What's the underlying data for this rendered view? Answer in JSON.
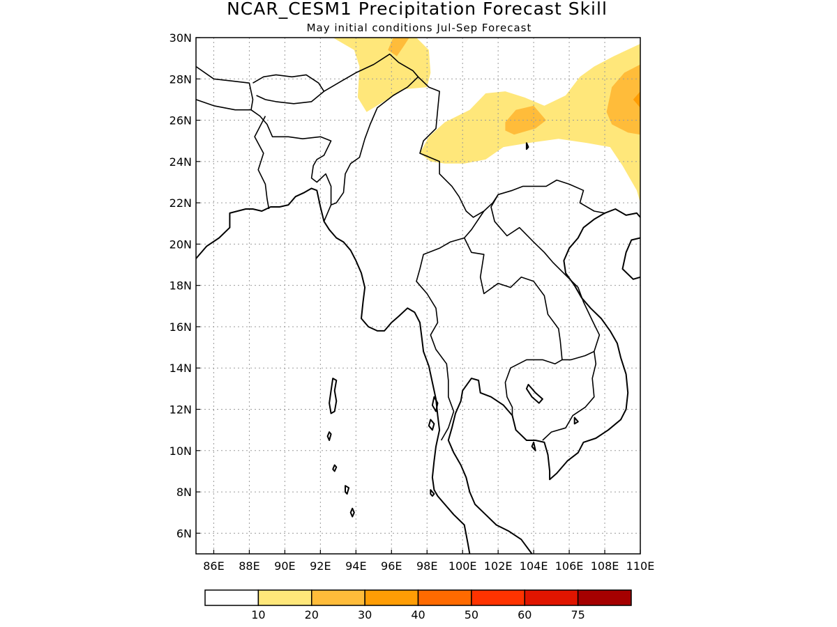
{
  "title": "NCAR_CESM1 Precipitation Forecast Skill",
  "subtitle": "May initial conditions  Jul-Sep Forecast",
  "map": {
    "lon_range": [
      85,
      110
    ],
    "lat_range": [
      5,
      30
    ],
    "lon_ticks": [
      86,
      88,
      90,
      92,
      94,
      96,
      98,
      100,
      102,
      104,
      106,
      108,
      110
    ],
    "lat_ticks": [
      6,
      8,
      10,
      12,
      14,
      16,
      18,
      20,
      22,
      24,
      26,
      28,
      30
    ],
    "lon_tick_labels": [
      "86E",
      "88E",
      "90E",
      "92E",
      "94E",
      "96E",
      "98E",
      "100E",
      "102E",
      "104E",
      "106E",
      "108E",
      "110E"
    ],
    "lat_tick_labels": [
      "6N",
      "8N",
      "10N",
      "12N",
      "14N",
      "16N",
      "18N",
      "20N",
      "22N",
      "24N",
      "26N",
      "28N",
      "30N"
    ],
    "grid": true
  },
  "colorbar": {
    "colors": [
      "#ffffff",
      "#ffe77a",
      "#ffbc3a",
      "#ff9d05",
      "#ff6a00",
      "#ff3300",
      "#e01500",
      "#a50000"
    ],
    "labels": [
      "10",
      "20",
      "30",
      "40",
      "50",
      "60",
      "75"
    ]
  },
  "skill_contours": [
    {
      "level": "10-20",
      "color": "#ffe77a",
      "polygons": [
        [
          [
            92.7,
            30
          ],
          [
            97.4,
            30
          ],
          [
            98.1,
            29.4
          ],
          [
            98.2,
            28.3
          ],
          [
            98.0,
            27.6
          ],
          [
            96.7,
            27.5
          ],
          [
            94.6,
            26.4
          ],
          [
            94.1,
            27.1
          ],
          [
            94.2,
            28.6
          ],
          [
            93.9,
            29.4
          ]
        ],
        [
          [
            97.6,
            24.4
          ],
          [
            98.1,
            25.2
          ],
          [
            99.0,
            25.9
          ],
          [
            100.4,
            26.5
          ],
          [
            101.3,
            27.3
          ],
          [
            102.4,
            27.4
          ],
          [
            103.5,
            27.1
          ],
          [
            104.6,
            26.7
          ],
          [
            105.8,
            27.2
          ],
          [
            106.6,
            28.1
          ],
          [
            107.4,
            28.6
          ],
          [
            108.5,
            29.1
          ],
          [
            110,
            29.7
          ],
          [
            110,
            22.0
          ],
          [
            109.8,
            22.6
          ],
          [
            109.0,
            23.8
          ],
          [
            108.3,
            24.7
          ],
          [
            107.0,
            24.9
          ],
          [
            105.4,
            25.1
          ],
          [
            103.7,
            24.9
          ],
          [
            102.3,
            24.7
          ],
          [
            101.3,
            24.1
          ],
          [
            100.1,
            23.9
          ],
          [
            99.0,
            23.9
          ],
          [
            98.2,
            24.0
          ]
        ]
      ]
    },
    {
      "level": "20-30",
      "color": "#ffbc3a",
      "polygons": [
        [
          [
            96.1,
            30
          ],
          [
            97.0,
            30
          ],
          [
            96.7,
            29.6
          ],
          [
            96.3,
            29.1
          ],
          [
            95.8,
            29.4
          ]
        ],
        [
          [
            102.4,
            25.9
          ],
          [
            103.0,
            26.5
          ],
          [
            104.0,
            26.7
          ],
          [
            104.7,
            26.0
          ],
          [
            104.1,
            25.6
          ],
          [
            102.9,
            25.3
          ],
          [
            102.4,
            25.5
          ]
        ],
        [
          [
            108.1,
            26.4
          ],
          [
            108.4,
            27.6
          ],
          [
            109.1,
            28.3
          ],
          [
            110,
            28.7
          ],
          [
            110,
            25.3
          ],
          [
            109.3,
            25.4
          ],
          [
            108.4,
            25.8
          ]
        ]
      ]
    },
    {
      "level": "30-40",
      "color": "#ff9d05",
      "polygons": [
        [
          [
            109.6,
            27.0
          ],
          [
            110,
            27.4
          ],
          [
            110,
            26.6
          ]
        ]
      ]
    }
  ],
  "coastlines": [
    [
      [
        85,
        19.3
      ],
      [
        85.6,
        19.9
      ],
      [
        86.3,
        20.3
      ],
      [
        86.9,
        20.8
      ],
      [
        86.9,
        21.5
      ],
      [
        87.8,
        21.7
      ],
      [
        88.2,
        21.7
      ],
      [
        88.7,
        21.6
      ],
      [
        89.2,
        21.8
      ],
      [
        89.7,
        21.8
      ],
      [
        90.2,
        21.9
      ],
      [
        90.6,
        22.3
      ],
      [
        91.1,
        22.5
      ],
      [
        91.5,
        22.7
      ],
      [
        91.8,
        22.6
      ],
      [
        92.0,
        21.8
      ],
      [
        92.2,
        21.1
      ],
      [
        92.5,
        20.7
      ],
      [
        92.9,
        20.3
      ],
      [
        93.3,
        20.1
      ],
      [
        93.7,
        19.7
      ],
      [
        94.0,
        19.2
      ],
      [
        94.3,
        18.6
      ],
      [
        94.5,
        17.9
      ],
      [
        94.4,
        17.2
      ],
      [
        94.3,
        16.4
      ],
      [
        94.7,
        16.0
      ],
      [
        95.2,
        15.8
      ],
      [
        95.6,
        15.8
      ],
      [
        96.0,
        16.2
      ],
      [
        96.4,
        16.5
      ],
      [
        96.9,
        16.9
      ],
      [
        97.3,
        16.7
      ],
      [
        97.6,
        16.2
      ],
      [
        97.7,
        15.5
      ],
      [
        97.8,
        14.8
      ],
      [
        98.1,
        14.1
      ],
      [
        98.3,
        13.3
      ],
      [
        98.5,
        12.5
      ],
      [
        98.6,
        11.7
      ],
      [
        98.7,
        11.0
      ],
      [
        98.5,
        10.2
      ],
      [
        98.4,
        9.5
      ],
      [
        98.3,
        8.7
      ],
      [
        98.4,
        8.1
      ],
      [
        98.6,
        7.8
      ],
      [
        99.0,
        7.4
      ],
      [
        99.5,
        6.9
      ],
      [
        100.1,
        6.4
      ],
      [
        100.3,
        5.5
      ],
      [
        100.4,
        5.0
      ]
    ],
    [
      [
        103.9,
        5.0
      ],
      [
        103.3,
        5.7
      ],
      [
        102.6,
        6.1
      ],
      [
        101.9,
        6.4
      ],
      [
        101.3,
        6.9
      ],
      [
        100.7,
        7.4
      ],
      [
        100.4,
        8.0
      ],
      [
        100.2,
        8.7
      ],
      [
        99.9,
        9.3
      ],
      [
        99.5,
        9.9
      ],
      [
        99.2,
        10.5
      ],
      [
        99.4,
        11.1
      ],
      [
        99.6,
        11.8
      ],
      [
        99.9,
        12.4
      ],
      [
        100.0,
        12.9
      ],
      [
        100.5,
        13.5
      ],
      [
        100.9,
        13.4
      ],
      [
        101.0,
        12.8
      ],
      [
        101.6,
        12.6
      ],
      [
        102.3,
        12.2
      ],
      [
        102.8,
        11.7
      ],
      [
        103.0,
        11.0
      ],
      [
        103.6,
        10.5
      ],
      [
        104.1,
        10.5
      ],
      [
        104.6,
        10.4
      ],
      [
        104.8,
        9.8
      ],
      [
        104.9,
        9.0
      ],
      [
        104.9,
        8.6
      ],
      [
        105.3,
        8.9
      ],
      [
        105.9,
        9.5
      ],
      [
        106.5,
        9.9
      ],
      [
        106.8,
        10.4
      ],
      [
        107.5,
        10.6
      ],
      [
        108.2,
        11.0
      ],
      [
        108.9,
        11.5
      ],
      [
        109.2,
        12.0
      ],
      [
        109.3,
        12.8
      ],
      [
        109.2,
        13.7
      ],
      [
        108.9,
        14.5
      ],
      [
        108.7,
        15.2
      ],
      [
        108.3,
        15.8
      ],
      [
        107.8,
        16.4
      ],
      [
        107.2,
        16.9
      ],
      [
        106.7,
        17.4
      ],
      [
        106.3,
        18.0
      ],
      [
        105.8,
        18.6
      ],
      [
        105.7,
        19.2
      ],
      [
        106.0,
        19.8
      ],
      [
        106.5,
        20.3
      ],
      [
        106.8,
        20.8
      ],
      [
        107.4,
        21.2
      ],
      [
        108.0,
        21.5
      ],
      [
        108.6,
        21.7
      ],
      [
        109.2,
        21.4
      ],
      [
        109.8,
        21.5
      ],
      [
        110,
        21.3
      ]
    ],
    [
      [
        110,
        20.3
      ],
      [
        109.5,
        20.2
      ],
      [
        109.2,
        19.6
      ],
      [
        109.0,
        18.8
      ],
      [
        109.6,
        18.3
      ],
      [
        110,
        18.4
      ]
    ]
  ],
  "borders": [
    [
      [
        85,
        28.6
      ],
      [
        86.0,
        28.0
      ],
      [
        87.0,
        27.9
      ],
      [
        88.0,
        27.8
      ],
      [
        88.2,
        27.0
      ],
      [
        88.1,
        26.5
      ],
      [
        87.2,
        26.5
      ],
      [
        86.0,
        26.7
      ],
      [
        85,
        27.0
      ]
    ],
    [
      [
        88.2,
        27.8
      ],
      [
        88.8,
        28.1
      ],
      [
        89.5,
        28.2
      ],
      [
        90.4,
        28.1
      ],
      [
        91.2,
        28.2
      ],
      [
        91.9,
        27.8
      ],
      [
        92.2,
        27.4
      ],
      [
        91.5,
        26.9
      ],
      [
        90.5,
        26.8
      ],
      [
        89.5,
        26.9
      ],
      [
        88.9,
        27.0
      ],
      [
        88.4,
        27.2
      ]
    ],
    [
      [
        88.1,
        26.5
      ],
      [
        88.6,
        26.2
      ],
      [
        89.0,
        25.8
      ],
      [
        89.3,
        25.2
      ],
      [
        90.2,
        25.2
      ],
      [
        91.0,
        25.1
      ],
      [
        92.0,
        25.2
      ],
      [
        92.6,
        25.0
      ],
      [
        92.2,
        24.3
      ],
      [
        91.8,
        24.1
      ],
      [
        91.6,
        23.8
      ],
      [
        91.5,
        23.2
      ],
      [
        91.8,
        23.0
      ],
      [
        92.3,
        23.4
      ],
      [
        92.6,
        22.8
      ],
      [
        92.6,
        21.9
      ],
      [
        92.2,
        21.1
      ]
    ],
    [
      [
        88.9,
        26.2
      ],
      [
        88.3,
        25.2
      ],
      [
        88.8,
        24.4
      ],
      [
        88.5,
        23.6
      ],
      [
        88.9,
        22.9
      ],
      [
        89.0,
        22.2
      ],
      [
        89.1,
        21.7
      ]
    ],
    [
      [
        92.2,
        27.4
      ],
      [
        93.2,
        27.9
      ],
      [
        94.0,
        28.3
      ],
      [
        95.0,
        28.7
      ],
      [
        95.9,
        29.2
      ],
      [
        96.4,
        28.8
      ],
      [
        97.2,
        28.4
      ],
      [
        97.5,
        28.1
      ],
      [
        96.9,
        27.6
      ],
      [
        96.1,
        27.2
      ],
      [
        95.2,
        26.6
      ],
      [
        94.8,
        25.8
      ],
      [
        94.5,
        25.1
      ],
      [
        94.2,
        24.2
      ],
      [
        93.7,
        23.9
      ],
      [
        93.4,
        23.4
      ],
      [
        93.3,
        22.5
      ],
      [
        92.9,
        22.0
      ],
      [
        92.6,
        21.9
      ]
    ],
    [
      [
        97.5,
        28.1
      ],
      [
        98.1,
        27.6
      ],
      [
        98.7,
        27.4
      ],
      [
        98.6,
        26.5
      ],
      [
        98.5,
        25.6
      ],
      [
        97.8,
        25.0
      ],
      [
        97.6,
        24.4
      ],
      [
        98.7,
        24.0
      ],
      [
        98.7,
        23.4
      ],
      [
        99.4,
        22.8
      ],
      [
        99.8,
        22.3
      ],
      [
        100.2,
        21.6
      ],
      [
        100.6,
        21.3
      ],
      [
        101.2,
        21.6
      ],
      [
        101.7,
        22.0
      ],
      [
        102.0,
        22.4
      ],
      [
        102.8,
        22.6
      ],
      [
        103.4,
        22.8
      ],
      [
        104.0,
        22.8
      ],
      [
        104.7,
        22.8
      ],
      [
        105.3,
        23.1
      ],
      [
        106.0,
        22.9
      ],
      [
        106.8,
        22.6
      ],
      [
        106.6,
        22.0
      ],
      [
        107.4,
        21.6
      ],
      [
        108.0,
        21.5
      ]
    ],
    [
      [
        101.2,
        21.6
      ],
      [
        100.5,
        20.7
      ],
      [
        100.1,
        20.3
      ],
      [
        99.3,
        20.1
      ],
      [
        98.7,
        19.8
      ],
      [
        97.8,
        19.5
      ],
      [
        97.6,
        18.8
      ],
      [
        97.4,
        18.2
      ],
      [
        98.0,
        17.6
      ],
      [
        98.5,
        16.9
      ],
      [
        98.6,
        16.2
      ],
      [
        98.2,
        15.6
      ],
      [
        98.5,
        14.9
      ],
      [
        99.1,
        14.2
      ],
      [
        99.2,
        13.4
      ],
      [
        99.2,
        12.6
      ],
      [
        99.5,
        11.9
      ],
      [
        99.2,
        11.1
      ],
      [
        98.8,
        10.5
      ]
    ],
    [
      [
        100.1,
        20.3
      ],
      [
        100.5,
        19.6
      ],
      [
        101.2,
        19.5
      ],
      [
        101.0,
        18.4
      ],
      [
        101.2,
        17.6
      ],
      [
        102.0,
        18.1
      ],
      [
        102.7,
        17.9
      ],
      [
        103.3,
        18.4
      ],
      [
        104.0,
        18.2
      ],
      [
        104.6,
        17.5
      ],
      [
        104.8,
        16.6
      ],
      [
        105.4,
        15.9
      ],
      [
        105.5,
        15.3
      ],
      [
        105.6,
        14.4
      ],
      [
        105.2,
        14.2
      ],
      [
        104.5,
        14.4
      ],
      [
        103.6,
        14.4
      ],
      [
        102.7,
        14.0
      ],
      [
        102.4,
        13.3
      ],
      [
        102.5,
        12.6
      ],
      [
        102.8,
        12.1
      ],
      [
        102.8,
        11.7
      ]
    ],
    [
      [
        102.0,
        22.4
      ],
      [
        101.6,
        21.8
      ],
      [
        101.8,
        21.1
      ],
      [
        102.5,
        20.4
      ],
      [
        103.2,
        20.8
      ],
      [
        104.0,
        20.1
      ],
      [
        104.6,
        19.6
      ],
      [
        105.1,
        19.1
      ],
      [
        105.8,
        18.5
      ],
      [
        106.5,
        17.9
      ],
      [
        106.8,
        17.2
      ],
      [
        107.3,
        16.3
      ],
      [
        107.7,
        15.6
      ],
      [
        107.4,
        14.8
      ],
      [
        107.5,
        14.2
      ],
      [
        107.3,
        13.5
      ],
      [
        107.4,
        12.6
      ],
      [
        106.9,
        12.1
      ],
      [
        106.2,
        11.7
      ],
      [
        105.8,
        11.1
      ],
      [
        105.0,
        10.9
      ],
      [
        104.5,
        10.5
      ]
    ],
    [
      [
        105.6,
        14.4
      ],
      [
        106.1,
        14.4
      ],
      [
        106.9,
        14.6
      ],
      [
        107.4,
        14.8
      ]
    ]
  ],
  "lakes": [
    [
      [
        103.7,
        13.2
      ],
      [
        104.1,
        12.8
      ],
      [
        104.5,
        12.5
      ],
      [
        104.3,
        12.3
      ],
      [
        103.9,
        12.6
      ],
      [
        103.6,
        13.0
      ]
    ]
  ],
  "islands": [
    [
      [
        92.7,
        13.5
      ],
      [
        92.9,
        13.4
      ],
      [
        92.8,
        12.9
      ],
      [
        92.9,
        12.4
      ],
      [
        92.8,
        11.9
      ],
      [
        92.6,
        11.8
      ],
      [
        92.5,
        12.3
      ],
      [
        92.6,
        12.9
      ]
    ],
    [
      [
        92.5,
        10.9
      ],
      [
        92.6,
        10.8
      ],
      [
        92.5,
        10.5
      ],
      [
        92.4,
        10.7
      ]
    ],
    [
      [
        92.8,
        9.3
      ],
      [
        92.9,
        9.2
      ],
      [
        92.8,
        9.0
      ],
      [
        92.7,
        9.1
      ]
    ],
    [
      [
        93.4,
        8.3
      ],
      [
        93.6,
        8.2
      ],
      [
        93.5,
        7.9
      ],
      [
        93.4,
        8.0
      ]
    ],
    [
      [
        93.8,
        7.2
      ],
      [
        93.9,
        7.0
      ],
      [
        93.8,
        6.8
      ],
      [
        93.7,
        7.0
      ]
    ],
    [
      [
        98.4,
        12.6
      ],
      [
        98.6,
        12.3
      ],
      [
        98.5,
        11.9
      ],
      [
        98.3,
        12.2
      ]
    ],
    [
      [
        98.2,
        11.5
      ],
      [
        98.4,
        11.3
      ],
      [
        98.3,
        11.0
      ],
      [
        98.1,
        11.2
      ]
    ],
    [
      [
        98.2,
        8.1
      ],
      [
        98.4,
        7.9
      ],
      [
        98.3,
        7.8
      ],
      [
        98.2,
        7.9
      ]
    ],
    [
      [
        104.0,
        10.4
      ],
      [
        104.1,
        10.0
      ],
      [
        103.9,
        10.2
      ]
    ],
    [
      [
        106.3,
        11.6
      ],
      [
        106.5,
        11.4
      ],
      [
        106.3,
        11.3
      ]
    ],
    [
      [
        103.6,
        24.9
      ],
      [
        103.7,
        24.7
      ],
      [
        103.6,
        24.6
      ]
    ]
  ]
}
